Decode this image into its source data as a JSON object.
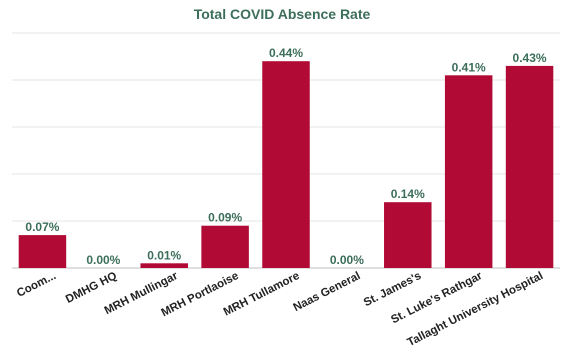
{
  "chart_data": {
    "type": "bar",
    "title": "Total COVID Absence Rate",
    "categories": [
      "Coom...",
      "DMHG HQ",
      "MRH Mullingar",
      "MRH Portlaoise",
      "MRH Tullamore",
      "Naas General",
      "St. James's",
      "St. Luke's Rathgar",
      "Tallaght University Hospital"
    ],
    "values": [
      0.07,
      0.0,
      0.01,
      0.09,
      0.44,
      0.0,
      0.14,
      0.41,
      0.43
    ],
    "value_labels": [
      "0.07%",
      "0.00%",
      "0.01%",
      "0.09%",
      "0.44%",
      "0.00%",
      "0.14%",
      "0.41%",
      "0.43%"
    ],
    "xlabel": "",
    "ylabel": "",
    "ylim": [
      0,
      0.5
    ],
    "grid": true,
    "legend": "none",
    "colors": {
      "bar": "#b10a35",
      "label": "#3c6e5a",
      "title": "#3c6e5a",
      "grid": "#e6e6e6",
      "axis": "#bfbfbf"
    }
  }
}
